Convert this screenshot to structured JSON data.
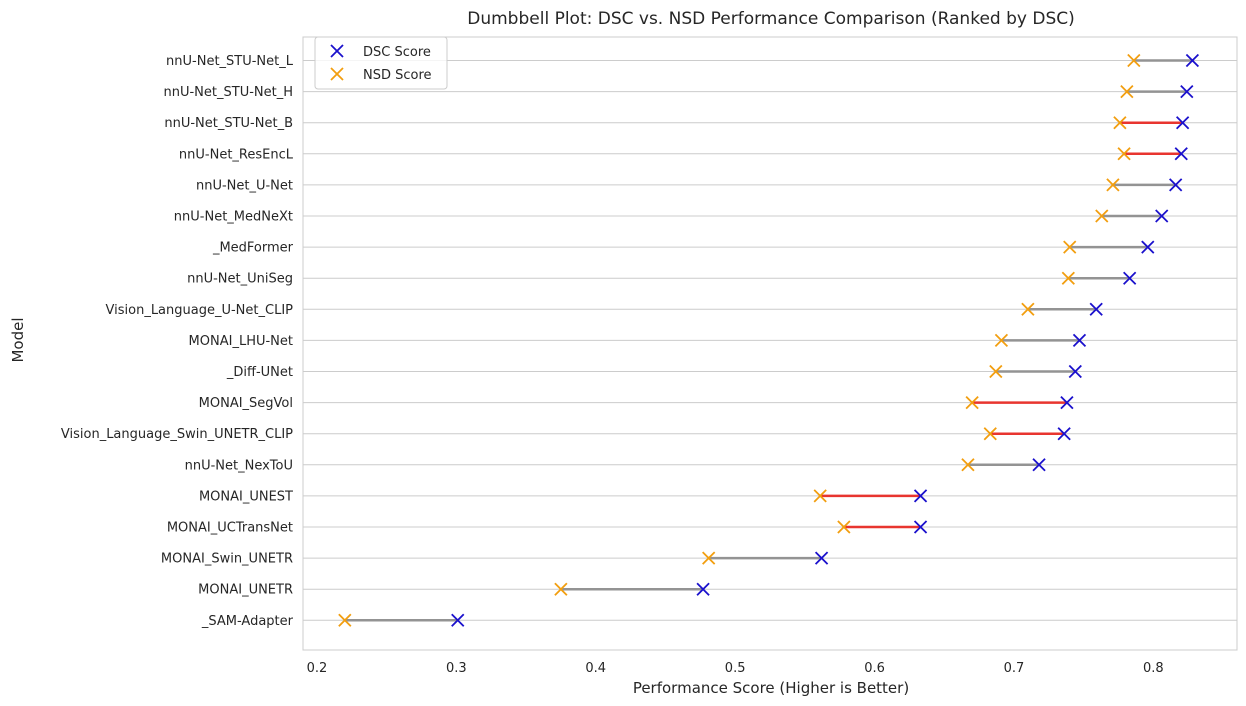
{
  "chart_data": {
    "type": "dumbbell",
    "title": "Dumbbell Plot: DSC vs. NSD Performance Comparison (Ranked by DSC)",
    "xlabel": "Performance Score (Higher is Better)",
    "ylabel": "Model",
    "xlim": [
      0.19,
      0.86
    ],
    "xticks": [
      0.2,
      0.3,
      0.4,
      0.5,
      0.6,
      0.7,
      0.8
    ],
    "xtick_labels": [
      "0.2",
      "0.3",
      "0.4",
      "0.5",
      "0.6",
      "0.7",
      "0.8"
    ],
    "grid": "horizontal",
    "legend": {
      "position": "top-left",
      "entries": [
        "DSC Score",
        "NSD Score"
      ]
    },
    "colors": {
      "dsc": "#1a10cc",
      "nsd": "#f29e0f",
      "connector_default": "#939393",
      "connector_highlight": "#e8352f",
      "grid": "#cccccc",
      "frame": "#cccccc"
    },
    "models": [
      {
        "name": "nnU-Net_STU-Net_L",
        "dsc": 0.828,
        "nsd": 0.786,
        "highlight": false
      },
      {
        "name": "nnU-Net_STU-Net_H",
        "dsc": 0.824,
        "nsd": 0.781,
        "highlight": false
      },
      {
        "name": "nnU-Net_STU-Net_B",
        "dsc": 0.821,
        "nsd": 0.776,
        "highlight": true
      },
      {
        "name": "nnU-Net_ResEncL",
        "dsc": 0.82,
        "nsd": 0.779,
        "highlight": true
      },
      {
        "name": "nnU-Net_U-Net",
        "dsc": 0.816,
        "nsd": 0.771,
        "highlight": false
      },
      {
        "name": "nnU-Net_MedNeXt",
        "dsc": 0.806,
        "nsd": 0.763,
        "highlight": false
      },
      {
        "name": "_MedFormer",
        "dsc": 0.796,
        "nsd": 0.74,
        "highlight": false
      },
      {
        "name": "nnU-Net_UniSeg",
        "dsc": 0.783,
        "nsd": 0.739,
        "highlight": false
      },
      {
        "name": "Vision_Language_U-Net_CLIP",
        "dsc": 0.759,
        "nsd": 0.71,
        "highlight": false
      },
      {
        "name": "MONAI_LHU-Net",
        "dsc": 0.747,
        "nsd": 0.691,
        "highlight": false
      },
      {
        "name": "_Diff-UNet",
        "dsc": 0.744,
        "nsd": 0.687,
        "highlight": false
      },
      {
        "name": "MONAI_SegVol",
        "dsc": 0.738,
        "nsd": 0.67,
        "highlight": true
      },
      {
        "name": "Vision_Language_Swin_UNETR_CLIP",
        "dsc": 0.736,
        "nsd": 0.683,
        "highlight": true
      },
      {
        "name": "nnU-Net_NexToU",
        "dsc": 0.718,
        "nsd": 0.667,
        "highlight": false
      },
      {
        "name": "MONAI_UNEST",
        "dsc": 0.633,
        "nsd": 0.561,
        "highlight": true
      },
      {
        "name": "MONAI_UCTransNet",
        "dsc": 0.633,
        "nsd": 0.578,
        "highlight": true
      },
      {
        "name": "MONAI_Swin_UNETR",
        "dsc": 0.562,
        "nsd": 0.481,
        "highlight": false
      },
      {
        "name": "MONAI_UNETR",
        "dsc": 0.477,
        "nsd": 0.375,
        "highlight": false
      },
      {
        "name": "_SAM-Adapter",
        "dsc": 0.301,
        "nsd": 0.22,
        "highlight": false
      }
    ]
  }
}
